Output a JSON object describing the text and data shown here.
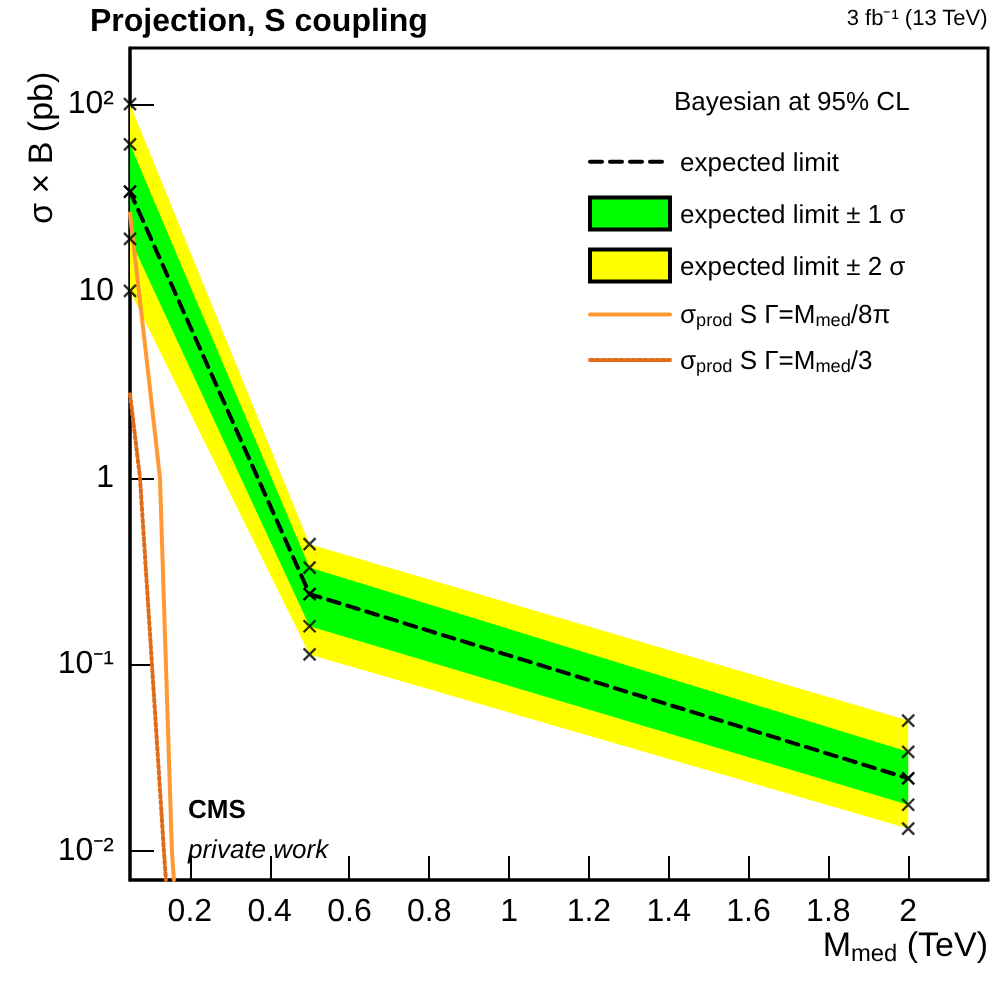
{
  "chart_data": {
    "type": "line",
    "title": "Projection, S coupling",
    "subtitle": "3 fb⁻¹ (13 TeV)",
    "xlabel": "M$_{med}$ (TeV)",
    "ylabel": "σ × B (pb)",
    "legend_title": "Bayesian at 95% CL",
    "annotations": [
      "CMS",
      "private work"
    ],
    "log": "y",
    "grid": false,
    "legend": "top right",
    "marker": "cross",
    "xlim": [
      0.05,
      2.2
    ],
    "xticks": [
      0.2,
      0.4,
      0.6,
      0.8,
      1,
      1.2,
      1.4,
      1.6,
      1.8,
      2
    ],
    "ylim": [
      0.007,
      200
    ],
    "yticks": [
      {
        "value": 0.01,
        "label": "10⁻²"
      },
      {
        "value": 0.1,
        "label": "10⁻¹"
      },
      1,
      10,
      {
        "value": 100,
        "label": "10²"
      }
    ],
    "series": [
      {
        "name": "expected limit ± 2 σ",
        "type": "area",
        "color": "#ffff00",
        "x": [
          0.05,
          0.5,
          2
        ],
        "marker": "none",
        "values": [
          null,
          null,
          null
        ],
        "lower": [
          10,
          0.113,
          0.0132
        ],
        "upper": [
          100,
          0.44,
          0.05
        ]
      },
      {
        "name": "expected limit ± 1 σ",
        "type": "area",
        "color": "#00ff00",
        "x": [
          0.05,
          0.5,
          2
        ],
        "marker": "none",
        "values": [
          null,
          null,
          null
        ],
        "lower": [
          19,
          0.16,
          0.0177
        ],
        "upper": [
          61,
          0.33,
          0.034
        ]
      },
      {
        "type": "scatter",
        "color": "#000000",
        "marker": "cross",
        "x": [
          0.05,
          0.05,
          0.05,
          0.05,
          0.5,
          0.5,
          0.5,
          0.5,
          2,
          2,
          2,
          2
        ],
        "values": [
          10,
          19,
          61,
          100,
          0.113,
          0.16,
          0.33,
          0.44,
          0.0132,
          0.0177,
          0.034,
          0.05
        ]
      },
      {
        "name": "expected limit",
        "type": "line",
        "color": "#000000",
        "line_style": "dashed",
        "x": [
          0.05,
          0.5,
          2
        ],
        "values": [
          34,
          0.238,
          0.0245
        ]
      },
      {
        "name": "σ$_{prod}$ S Γ=M$_{med}$/8π",
        "type": "line",
        "color": "#ff9933",
        "line_style": "solid",
        "marker": "none",
        "x": [
          0.05,
          0.1,
          0.125,
          0.14,
          0.155,
          0.16
        ],
        "values": [
          26,
          3,
          1,
          0.1,
          0.01,
          0.007
        ]
      },
      {
        "name": "σ$_{prod}$ S Γ=M$_{med}$/3",
        "type": "line",
        "color": "#e06c1a",
        "line_style": "dotted",
        "marker": "none",
        "x": [
          0.05,
          0.075,
          0.105,
          0.135,
          0.14
        ],
        "values": [
          2.8,
          1,
          0.1,
          0.01,
          0.007
        ]
      }
    ]
  }
}
